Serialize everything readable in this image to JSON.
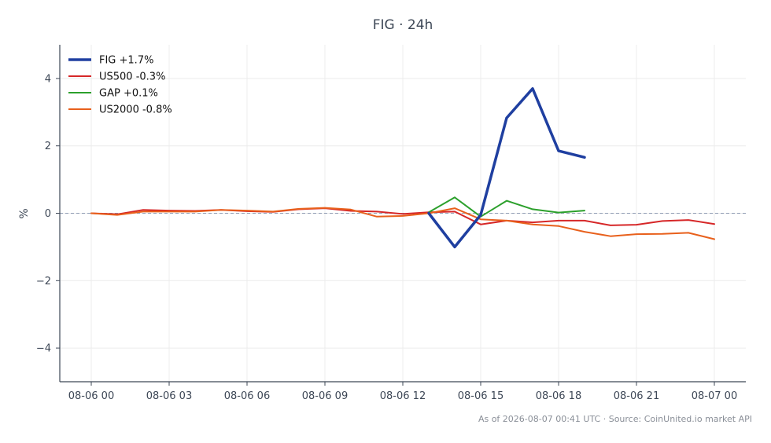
{
  "chart_data": {
    "type": "line",
    "title": "FIG · 24h",
    "ylabel": "%",
    "xlabel": "",
    "ylim": [
      -5,
      5
    ],
    "yticks": [
      -4,
      -2,
      0,
      2,
      4
    ],
    "ytick_labels": [
      "−4",
      "−2",
      "0",
      "2",
      "4"
    ],
    "xticks": [
      "08-06 00",
      "08-06 03",
      "08-06 06",
      "08-06 09",
      "08-06 12",
      "08-06 15",
      "08-06 18",
      "08-06 21",
      "08-07 00"
    ],
    "x": [
      "08-06 00",
      "08-06 01",
      "08-06 02",
      "08-06 03",
      "08-06 04",
      "08-06 05",
      "08-06 06",
      "08-06 07",
      "08-06 08",
      "08-06 09",
      "08-06 10",
      "08-06 11",
      "08-06 12",
      "08-06 13",
      "08-06 14",
      "08-06 15",
      "08-06 16",
      "08-06 17",
      "08-06 18",
      "08-06 19",
      "08-06 20",
      "08-06 21",
      "08-06 22",
      "08-06 23",
      "08-07 00"
    ],
    "grid": true,
    "legend_position": "top-left",
    "reference_line": 0,
    "series": [
      {
        "name": "FIG +1.7%",
        "color": "#1f3fa0",
        "width": 3.5,
        "values": [
          null,
          null,
          null,
          null,
          null,
          null,
          null,
          null,
          null,
          null,
          null,
          null,
          null,
          0.0,
          -1.0,
          -0.05,
          2.83,
          3.7,
          1.85,
          1.66,
          null,
          null,
          null,
          null,
          null
        ]
      },
      {
        "name": "US500 -0.3%",
        "color": "#d62728",
        "width": 2,
        "values": [
          0.0,
          -0.03,
          0.1,
          0.08,
          0.07,
          0.1,
          0.06,
          0.04,
          0.12,
          0.15,
          0.07,
          0.05,
          -0.02,
          0.03,
          0.05,
          -0.33,
          -0.22,
          -0.27,
          -0.22,
          -0.22,
          -0.36,
          -0.34,
          -0.23,
          -0.2,
          -0.32
        ]
      },
      {
        "name": "GAP +0.1%",
        "color": "#2ca02c",
        "width": 2,
        "values": [
          null,
          null,
          null,
          null,
          null,
          null,
          null,
          null,
          null,
          null,
          null,
          null,
          null,
          0.03,
          0.47,
          -0.1,
          0.37,
          0.12,
          0.02,
          0.08,
          null,
          null,
          null,
          null,
          null
        ]
      },
      {
        "name": "US2000 -0.8%",
        "color": "#e8601c",
        "width": 2,
        "values": [
          0.0,
          -0.05,
          0.05,
          0.05,
          0.05,
          0.1,
          0.08,
          0.05,
          0.13,
          0.16,
          0.11,
          -0.1,
          -0.08,
          0.0,
          0.15,
          -0.18,
          -0.22,
          -0.33,
          -0.38,
          -0.55,
          -0.68,
          -0.62,
          -0.61,
          -0.58,
          -0.77
        ]
      }
    ]
  },
  "footer": "As of 2026-08-07 00:41 UTC · Source: CoinUnited.io market API",
  "colors": {
    "axis": "#3d4756",
    "grid": "#ececec",
    "zero_line": "#8e9bb3"
  }
}
